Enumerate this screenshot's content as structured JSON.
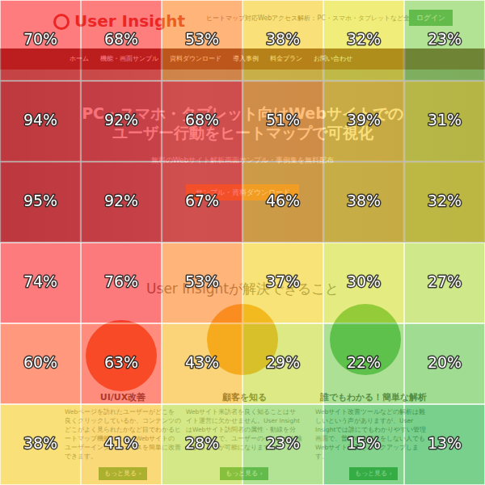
{
  "chart_data": {
    "type": "heatmap",
    "values": [
      [
        70,
        68,
        53,
        38,
        32,
        23
      ],
      [
        94,
        92,
        68,
        51,
        39,
        31
      ],
      [
        95,
        92,
        67,
        46,
        38,
        32
      ],
      [
        74,
        76,
        53,
        37,
        30,
        27
      ],
      [
        60,
        63,
        43,
        29,
        22,
        20
      ],
      [
        38,
        41,
        28,
        23,
        15,
        13
      ]
    ],
    "value_labels": [
      [
        "70%",
        "68%",
        "53%",
        "38%",
        "32%",
        "23%"
      ],
      [
        "94%",
        "92%",
        "68%",
        "51%",
        "39%",
        "31%"
      ],
      [
        "95%",
        "92%",
        "67%",
        "46%",
        "38%",
        "32%"
      ],
      [
        "74%",
        "76%",
        "53%",
        "37%",
        "30%",
        "27%"
      ],
      [
        "60%",
        "63%",
        "43%",
        "29%",
        "22%",
        "20%"
      ],
      [
        "38%",
        "41%",
        "28%",
        "23%",
        "15%",
        "13%"
      ]
    ],
    "data_labels": true,
    "tick_labels": false,
    "grid": true
  },
  "screenshot": {
    "logo": "User Insight",
    "tagline": "ヒートマップ対応Webアクセス解析：PC・スマホ・タブレットなど全対応",
    "login": "ログイン",
    "nav": [
      "ホーム",
      "機能・画面サンプル",
      "資料ダウンロード",
      "導入事例",
      "料金プラン",
      "お問い合わせ"
    ],
    "hero": {
      "title": [
        "PC・スマホ・タブレット向けWebサイトでの",
        "ユーザー行動をヒートマップで可視化"
      ],
      "subtitle": "無料のWebサイト解析画面サンプル・事例集を無料配布",
      "button": "サンプル・資料ダウンロード"
    },
    "section_title": "User Insightが解決できること",
    "features": [
      {
        "title": "UI/UX改善",
        "text": "Webページを訪れたユーザーがどこを良くクリックしているか、コンテンツのどこがよく見られたかなど目でわかるヒートマップ機能により、Webサイトのユーザーインターフェイスを簡単に改善できます。",
        "more": "もっと見る ›"
      },
      {
        "title": "顧客を知る",
        "text": "Webサイト来訪者を良く知ることはサイト運営に欠かせません。User InsightはWebサイト訪問者の属性・動線を分析することで、ユーザーのペルソナを推定することが可能になります。",
        "more": "もっと見る ›"
      },
      {
        "title": "誰でもわかる！簡単な解析",
        "text": "Webサイト改善ツールなどの解析は難しいという声がありますが、User Insightでは誰にでもわかりやすい管理画面で、普段Web解析をしない人でもWebサイト改善をバックアップします。",
        "more": "もっと見る ›"
      }
    ]
  }
}
